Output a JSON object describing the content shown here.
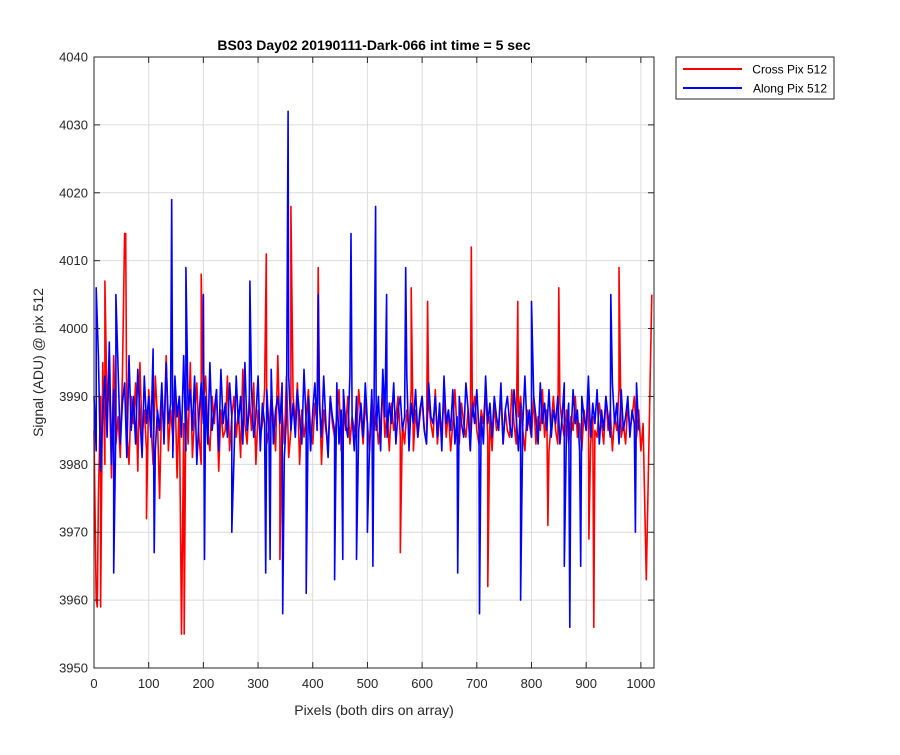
{
  "chart_data": {
    "type": "line",
    "title": "BS03 Day02 20190111-Dark-066 int time = 5 sec",
    "xlabel": "Pixels (both dirs on array)",
    "ylabel": "Signal (ADU) @ pix 512",
    "xlim": [
      0,
      1024
    ],
    "ylim": [
      3950,
      4040
    ],
    "xticks": [
      0,
      100,
      200,
      300,
      400,
      500,
      600,
      700,
      800,
      900,
      1000
    ],
    "yticks": [
      3950,
      3960,
      3970,
      3980,
      3990,
      4000,
      4010,
      4020,
      4030,
      4040
    ],
    "grid": true,
    "legend_position": "outside-top-right",
    "series": [
      {
        "name": "Cross Pix 512",
        "color": "#ff0000",
        "sampling": "approximate: noisy trace, one estimated value every 4 pixels; narrow spikes listed separately",
        "x_start": 0,
        "x_step": 4,
        "values": [
          3985,
          3960,
          3975,
          3990,
          3995,
          3980,
          3988,
          3992,
          3978,
          3996,
          3983,
          3987,
          3981,
          3993,
          4014,
          3985,
          3980,
          3990,
          3986,
          3992,
          3979,
          3995,
          3984,
          3988,
          3982,
          3991,
          3986,
          3980,
          3993,
          3987,
          3975,
          3990,
          3985,
          3996,
          3982,
          3988,
          3984,
          3992,
          3978,
          3990,
          3955,
          3986,
          3990,
          3983,
          3995,
          3981,
          3987,
          3992,
          3984,
          3980,
          3989,
          3993,
          3985,
          3982,
          3990,
          3986,
          3991,
          3979,
          3988,
          3984,
          3985,
          3993,
          3982,
          3987,
          3990,
          3984,
          3988,
          3981,
          3994,
          3986,
          3983,
          3990,
          3985,
          3992,
          3980,
          3988,
          3984,
          3986,
          3991,
          3983,
          3985,
          3990,
          3987,
          3982,
          3996,
          3984,
          3988,
          3983,
          3993,
          3981,
          3985,
          3990,
          3986,
          3992,
          3980,
          3988,
          3984,
          3987,
          3991,
          3985,
          3983,
          3989,
          3986,
          3992,
          3980,
          3988,
          3985,
          3983,
          3990,
          3986,
          3984,
          3987,
          3991,
          3982,
          3988,
          3985,
          3990,
          3983,
          3987,
          3985,
          3984,
          3991,
          3987,
          3983,
          3989,
          3986,
          3982,
          3990,
          3985,
          3988,
          3983,
          3986,
          3991,
          3984,
          3988,
          3982,
          3989,
          3985,
          3987,
          3990,
          3984,
          3986,
          3983,
          3988,
          3985,
          3991,
          3982,
          3988,
          3984,
          3987,
          3990,
          3985,
          3983,
          3989,
          3986,
          3984,
          3991,
          3983,
          3987,
          3985,
          3990,
          3984,
          3988,
          3982,
          3986,
          3991,
          3985,
          3983,
          3989,
          3986,
          3984,
          3988,
          3982,
          3987,
          3990,
          3985,
          3983,
          3988,
          3986,
          3991,
          3984,
          3987,
          3982,
          3989,
          3985,
          3986,
          3990,
          3983,
          3988,
          3985,
          3984,
          3991,
          3986,
          3983,
          3987,
          3990,
          3985,
          3982,
          3988,
          3986,
          3984,
          3990,
          3983,
          3987,
          3985,
          3991,
          3984,
          3988,
          3982,
          3986,
          3990,
          3985,
          3983,
          3989,
          3986,
          3984,
          3988,
          3983,
          3987,
          3985,
          3990,
          3984,
          3986,
          3982,
          3988,
          3985,
          3991,
          3983,
          3987,
          3985,
          3984,
          3989,
          3986,
          3983,
          3990,
          3985,
          3988,
          3982,
          3987,
          3985,
          3991,
          3984,
          3986,
          3983,
          3989,
          3985,
          3987,
          3990,
          3984,
          3988,
          3982,
          3986
        ],
        "spikes": [
          [
            6,
            3959
          ],
          [
            12,
            3959
          ],
          [
            20,
            4007
          ],
          [
            58,
            4014
          ],
          [
            96,
            3972
          ],
          [
            165,
            3955
          ],
          [
            196,
            4008
          ],
          [
            315,
            4011
          ],
          [
            340,
            3966
          ],
          [
            360,
            4018
          ],
          [
            410,
            4009
          ],
          [
            560,
            3967
          ],
          [
            580,
            4006
          ],
          [
            610,
            4004
          ],
          [
            690,
            4012
          ],
          [
            720,
            3962
          ],
          [
            775,
            4004
          ],
          [
            830,
            3971
          ],
          [
            850,
            4006
          ],
          [
            905,
            3969
          ],
          [
            914,
            3956
          ],
          [
            960,
            4009
          ],
          [
            1010,
            3963
          ],
          [
            1020,
            4005
          ]
        ]
      },
      {
        "name": "Along Pix 512",
        "color": "#0000ff",
        "sampling": "approximate: noisy trace, one estimated value every 4 pixels; narrow spikes listed separately",
        "x_start": 0,
        "x_step": 4,
        "values": [
          3990,
          3982,
          3996,
          3979,
          3988,
          3993,
          3984,
          3998,
          3980,
          3991,
          3986,
          3994,
          3983,
          3989,
          3992,
          3981,
          3996,
          3985,
          3990,
          3983,
          3994,
          3987,
          3981,
          3993,
          3986,
          3990,
          3984,
          3997,
          3982,
          3988,
          3985,
          3992,
          3983,
          3995,
          3986,
          3989,
          3981,
          3993,
          3987,
          3990,
          3984,
          3996,
          3982,
          3988,
          3991,
          3985,
          3993,
          3980,
          3987,
          3992,
          3986,
          3990,
          3983,
          3995,
          3985,
          3988,
          3991,
          3982,
          3994,
          3986,
          3989,
          3984,
          3992,
          3987,
          3981,
          3993,
          3986,
          3990,
          3983,
          3995,
          3985,
          3988,
          3991,
          3984,
          3987,
          3993,
          3982,
          3989,
          3986,
          3991,
          3985,
          3994,
          3983,
          3988,
          3990,
          3986,
          3992,
          3981,
          3987,
          3993,
          3985,
          3989,
          3984,
          3991,
          3987,
          3983,
          3994,
          3986,
          3990,
          3982,
          3988,
          3992,
          3985,
          3989,
          3984,
          3993,
          3986,
          3981,
          3990,
          3987,
          3985,
          3992,
          3983,
          3988,
          3991,
          3986,
          3984,
          3993,
          3987,
          3982,
          3990,
          3985,
          3989,
          3984,
          3992,
          3986,
          3983,
          3991,
          3988,
          3985,
          3990,
          3982,
          3994,
          3987,
          3984,
          3989,
          3986,
          3992,
          3983,
          3988,
          3990,
          3985,
          3987,
          3993,
          3982,
          3989,
          3986,
          3991,
          3984,
          3988,
          3990,
          3985,
          3983,
          3992,
          3987,
          3986,
          3990,
          3984,
          3989,
          3982,
          3993,
          3986,
          3988,
          3985,
          3991,
          3983,
          3987,
          3990,
          3986,
          3984,
          3992,
          3988,
          3982,
          3989,
          3986,
          3991,
          3985,
          3987,
          3983,
          3993,
          3986,
          3989,
          3984,
          3990,
          3987,
          3985,
          3992,
          3983,
          3988,
          3990,
          3986,
          3984,
          3991,
          3987,
          3982,
          3989,
          3986,
          3993,
          3985,
          3988,
          3984,
          3990,
          3987,
          3983,
          3992,
          3986,
          3989,
          3985,
          3991,
          3984,
          3988,
          3986,
          3990,
          3983,
          3987,
          3992,
          3985,
          3989,
          3984,
          3991,
          3986,
          3988,
          3982,
          3990,
          3987,
          3985,
          3993,
          3984,
          3989,
          3986,
          3991,
          3983,
          3988,
          3985,
          3990,
          3987,
          3984,
          3992,
          3986,
          3989,
          3983,
          3991,
          3985,
          3987,
          3990,
          3984,
          3988,
          3986,
          3992,
          3985
        ],
        "spikes": [
          [
            4,
            4006
          ],
          [
            36,
            3964
          ],
          [
            40,
            4005
          ],
          [
            110,
            3967
          ],
          [
            142,
            4019
          ],
          [
            168,
            4009
          ],
          [
            200,
            4005
          ],
          [
            202,
            3966
          ],
          [
            252,
            3970
          ],
          [
            285,
            4007
          ],
          [
            314,
            3964
          ],
          [
            322,
            3966
          ],
          [
            345,
            3958
          ],
          [
            355,
            4032
          ],
          [
            388,
            3961
          ],
          [
            410,
            4005
          ],
          [
            440,
            3963
          ],
          [
            455,
            3966
          ],
          [
            470,
            4014
          ],
          [
            480,
            3966
          ],
          [
            500,
            3970
          ],
          [
            510,
            3965
          ],
          [
            515,
            4018
          ],
          [
            535,
            4005
          ],
          [
            570,
            4009
          ],
          [
            665,
            3964
          ],
          [
            705,
            3958
          ],
          [
            780,
            3960
          ],
          [
            800,
            4004
          ],
          [
            860,
            3965
          ],
          [
            870,
            3956
          ],
          [
            890,
            3965
          ],
          [
            945,
            4005
          ],
          [
            990,
            3970
          ]
        ]
      }
    ]
  }
}
